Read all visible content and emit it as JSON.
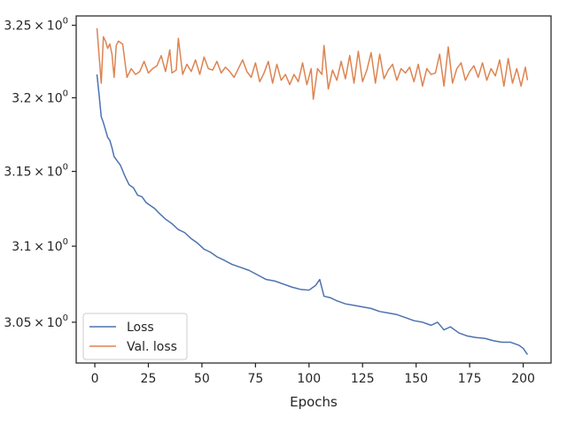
{
  "chart_data": {
    "type": "line",
    "title": "",
    "xlabel": "Epochs",
    "ylabel": "",
    "yscale": "log",
    "xlim": [
      -8.7,
      213.0
    ],
    "ylim": [
      3.0235,
      3.2565
    ],
    "grid": false,
    "legend_position": "lower-left",
    "x_ticks": [
      0,
      25,
      50,
      75,
      100,
      125,
      150,
      175,
      200
    ],
    "x_tick_labels": [
      "0",
      "25",
      "50",
      "75",
      "100",
      "125",
      "150",
      "175",
      "200"
    ],
    "y_ticks": [
      3.05,
      3.1,
      3.15,
      3.2,
      3.25
    ],
    "y_tick_labels": [
      {
        "mant": "3.05",
        "exp": "0"
      },
      {
        "mant": "3.1",
        "exp": "0"
      },
      {
        "mant": "3.15",
        "exp": "0"
      },
      {
        "mant": "3.2",
        "exp": "0"
      },
      {
        "mant": "3.25",
        "exp": "0"
      }
    ],
    "series": [
      {
        "name": "Loss",
        "color": "#4c72b0",
        "points": [
          [
            1,
            3.216
          ],
          [
            2,
            3.202
          ],
          [
            3,
            3.187
          ],
          [
            4,
            3.183
          ],
          [
            5,
            3.178
          ],
          [
            6,
            3.173
          ],
          [
            7,
            3.171
          ],
          [
            8,
            3.166
          ],
          [
            9,
            3.16
          ],
          [
            10,
            3.158
          ],
          [
            12,
            3.154
          ],
          [
            14,
            3.147
          ],
          [
            16,
            3.141
          ],
          [
            18,
            3.139
          ],
          [
            20,
            3.134
          ],
          [
            22,
            3.133
          ],
          [
            24,
            3.129
          ],
          [
            26,
            3.127
          ],
          [
            28,
            3.125
          ],
          [
            30,
            3.122
          ],
          [
            33,
            3.118
          ],
          [
            36,
            3.115
          ],
          [
            39,
            3.111
          ],
          [
            42,
            3.109
          ],
          [
            45,
            3.105
          ],
          [
            48,
            3.102
          ],
          [
            51,
            3.098
          ],
          [
            54,
            3.096
          ],
          [
            57,
            3.093
          ],
          [
            60,
            3.091
          ],
          [
            64,
            3.088
          ],
          [
            68,
            3.086
          ],
          [
            72,
            3.084
          ],
          [
            76,
            3.081
          ],
          [
            80,
            3.078
          ],
          [
            84,
            3.077
          ],
          [
            88,
            3.075
          ],
          [
            92,
            3.073
          ],
          [
            96,
            3.0715
          ],
          [
            100,
            3.071
          ],
          [
            103,
            3.074
          ],
          [
            105,
            3.078
          ],
          [
            107,
            3.067
          ],
          [
            110,
            3.066
          ],
          [
            113,
            3.064
          ],
          [
            117,
            3.062
          ],
          [
            121,
            3.061
          ],
          [
            125,
            3.06
          ],
          [
            129,
            3.059
          ],
          [
            133,
            3.057
          ],
          [
            137,
            3.056
          ],
          [
            141,
            3.055
          ],
          [
            145,
            3.053
          ],
          [
            149,
            3.051
          ],
          [
            153,
            3.05
          ],
          [
            157,
            3.048
          ],
          [
            160,
            3.05
          ],
          [
            163,
            3.045
          ],
          [
            166,
            3.047
          ],
          [
            170,
            3.043
          ],
          [
            174,
            3.041
          ],
          [
            178,
            3.04
          ],
          [
            182,
            3.0395
          ],
          [
            186,
            3.038
          ],
          [
            190,
            3.037
          ],
          [
            194,
            3.037
          ],
          [
            198,
            3.035
          ],
          [
            200,
            3.033
          ],
          [
            202,
            3.029
          ]
        ]
      },
      {
        "name": "Val. loss",
        "color": "#dd8452",
        "points": [
          [
            1,
            3.248
          ],
          [
            3,
            3.21
          ],
          [
            4,
            3.242
          ],
          [
            5,
            3.239
          ],
          [
            6,
            3.234
          ],
          [
            7,
            3.237
          ],
          [
            8,
            3.23
          ],
          [
            9,
            3.214
          ],
          [
            10,
            3.236
          ],
          [
            11,
            3.239
          ],
          [
            13,
            3.237
          ],
          [
            15,
            3.214
          ],
          [
            17,
            3.22
          ],
          [
            19,
            3.216
          ],
          [
            21,
            3.218
          ],
          [
            23,
            3.225
          ],
          [
            25,
            3.217
          ],
          [
            27,
            3.22
          ],
          [
            29,
            3.222
          ],
          [
            31,
            3.229
          ],
          [
            33,
            3.218
          ],
          [
            35,
            3.233
          ],
          [
            36,
            3.217
          ],
          [
            38,
            3.219
          ],
          [
            39,
            3.241
          ],
          [
            41,
            3.216
          ],
          [
            43,
            3.223
          ],
          [
            45,
            3.218
          ],
          [
            47,
            3.226
          ],
          [
            49,
            3.216
          ],
          [
            51,
            3.228
          ],
          [
            53,
            3.22
          ],
          [
            55,
            3.219
          ],
          [
            57,
            3.225
          ],
          [
            59,
            3.217
          ],
          [
            61,
            3.221
          ],
          [
            63,
            3.218
          ],
          [
            65,
            3.214
          ],
          [
            67,
            3.22
          ],
          [
            69,
            3.226
          ],
          [
            71,
            3.218
          ],
          [
            73,
            3.214
          ],
          [
            75,
            3.224
          ],
          [
            77,
            3.211
          ],
          [
            79,
            3.217
          ],
          [
            81,
            3.225
          ],
          [
            83,
            3.21
          ],
          [
            85,
            3.223
          ],
          [
            87,
            3.212
          ],
          [
            89,
            3.216
          ],
          [
            91,
            3.209
          ],
          [
            93,
            3.216
          ],
          [
            95,
            3.211
          ],
          [
            97,
            3.224
          ],
          [
            99,
            3.209
          ],
          [
            101,
            3.22
          ],
          [
            102,
            3.199
          ],
          [
            104,
            3.22
          ],
          [
            106,
            3.216
          ],
          [
            107,
            3.236
          ],
          [
            109,
            3.206
          ],
          [
            111,
            3.219
          ],
          [
            113,
            3.212
          ],
          [
            115,
            3.225
          ],
          [
            117,
            3.213
          ],
          [
            119,
            3.229
          ],
          [
            121,
            3.21
          ],
          [
            123,
            3.232
          ],
          [
            125,
            3.211
          ],
          [
            127,
            3.219
          ],
          [
            129,
            3.231
          ],
          [
            131,
            3.21
          ],
          [
            133,
            3.23
          ],
          [
            135,
            3.213
          ],
          [
            137,
            3.219
          ],
          [
            139,
            3.223
          ],
          [
            141,
            3.212
          ],
          [
            143,
            3.22
          ],
          [
            145,
            3.217
          ],
          [
            147,
            3.221
          ],
          [
            149,
            3.211
          ],
          [
            151,
            3.223
          ],
          [
            153,
            3.208
          ],
          [
            155,
            3.22
          ],
          [
            157,
            3.216
          ],
          [
            159,
            3.217
          ],
          [
            161,
            3.23
          ],
          [
            163,
            3.208
          ],
          [
            165,
            3.235
          ],
          [
            167,
            3.21
          ],
          [
            169,
            3.22
          ],
          [
            171,
            3.224
          ],
          [
            173,
            3.212
          ],
          [
            175,
            3.218
          ],
          [
            177,
            3.222
          ],
          [
            179,
            3.214
          ],
          [
            181,
            3.224
          ],
          [
            183,
            3.212
          ],
          [
            185,
            3.22
          ],
          [
            187,
            3.215
          ],
          [
            189,
            3.226
          ],
          [
            191,
            3.208
          ],
          [
            193,
            3.227
          ],
          [
            195,
            3.21
          ],
          [
            197,
            3.22
          ],
          [
            199,
            3.208
          ],
          [
            201,
            3.221
          ],
          [
            202,
            3.212
          ]
        ]
      }
    ]
  }
}
